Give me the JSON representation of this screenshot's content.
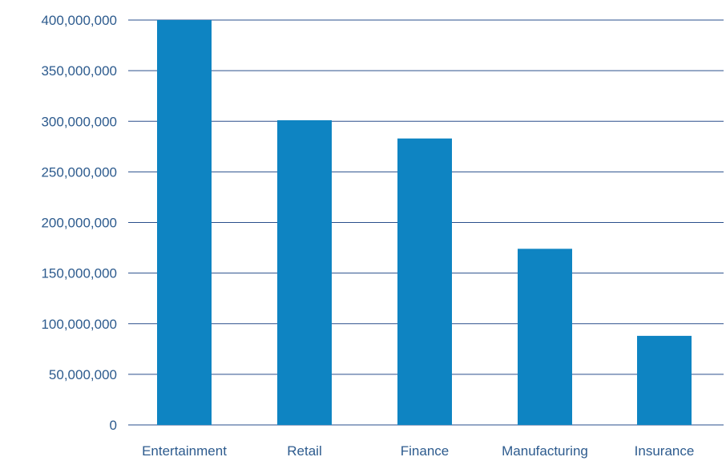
{
  "chart_data": {
    "type": "bar",
    "categories": [
      "Entertainment",
      "Retail",
      "Finance",
      "Manufacturing",
      "Insurance"
    ],
    "values": [
      400000000,
      301000000,
      283000000,
      174000000,
      88000000
    ],
    "y_ticks": [
      0,
      50000000,
      100000000,
      150000000,
      200000000,
      250000000,
      300000000,
      350000000,
      400000000
    ],
    "y_tick_labels": [
      "0",
      "50,000,000",
      "100,000,000",
      "150,000,000",
      "200,000,000",
      "250,000,000",
      "300,000,000",
      "350,000,000",
      "400,000,000"
    ],
    "ylim": [
      0,
      400000000
    ],
    "title": "",
    "xlabel": "",
    "ylabel": "",
    "grid": true,
    "legend": "none"
  },
  "colors": {
    "bar": "#0e84c2",
    "gridline": "#2a4f8c",
    "axis_text": "#2d5b8e",
    "background": "#ffffff"
  }
}
